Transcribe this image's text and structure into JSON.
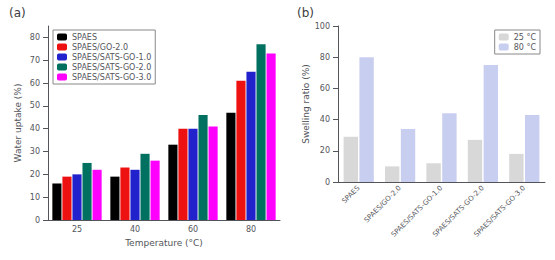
{
  "chart_data": [
    {
      "type": "bar",
      "title": "(a)",
      "xlabel": "Temperature (°C)",
      "ylabel": "Water uptake (%)",
      "categories": [
        "25",
        "40",
        "60",
        "80"
      ],
      "series": [
        {
          "name": "SPAES",
          "color": "#000000",
          "values": [
            16,
            19,
            33,
            47
          ]
        },
        {
          "name": "SPAES/GO-2.0",
          "color": "#ee1111",
          "values": [
            19,
            23,
            40,
            61
          ]
        },
        {
          "name": "SPAES/SATS-GO-1.0",
          "color": "#2222cc",
          "values": [
            20,
            22,
            40,
            65
          ]
        },
        {
          "name": "SPAES/SATS-GO-2.0",
          "color": "#007060",
          "values": [
            25,
            29,
            46,
            77
          ]
        },
        {
          "name": "SPAES/SATS-GO-3.0",
          "color": "#ff00ff",
          "values": [
            22,
            26,
            41,
            73
          ]
        }
      ],
      "ylim": [
        0,
        85
      ],
      "yticks": [
        0,
        10,
        20,
        30,
        40,
        50,
        60,
        70,
        80
      ],
      "grid": false,
      "legend": "upper left"
    },
    {
      "type": "bar",
      "title": "(b)",
      "ylabel": "Swelling ratio (%)",
      "categories": [
        "SPAES",
        "SPAES/GO-2.0",
        "SPAES/SATS-GO-1.0",
        "SPAES/SATS-GO-2.0",
        "SPAES/SATS-GO-3.0"
      ],
      "series": [
        {
          "name": "25 °C",
          "color": "#d8d8d8",
          "values": [
            29,
            10,
            12,
            27,
            18
          ]
        },
        {
          "name": "80 °C",
          "color": "#c8cef0",
          "values": [
            80,
            34,
            44,
            75,
            43
          ]
        }
      ],
      "ylim": [
        0,
        100
      ],
      "yticks": [
        0,
        20,
        40,
        60,
        80,
        100
      ],
      "grid": false,
      "legend": "upper right"
    }
  ]
}
